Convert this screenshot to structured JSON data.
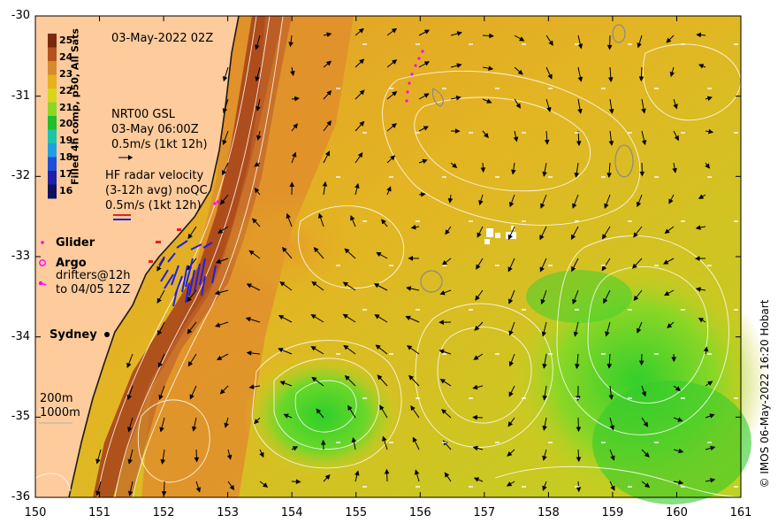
{
  "map": {
    "date_label": "03-May-2022 02Z",
    "colorbar": {
      "title": "Filled 4h comp, p50, All Sats",
      "ticks": [
        "25",
        "24",
        "23",
        "22",
        "21",
        "20",
        "19",
        "18",
        "17",
        "16"
      ],
      "colors": [
        "#7a2a0a",
        "#b4531c",
        "#d88a2e",
        "#e7b21f",
        "#d6d61a",
        "#8fd624",
        "#1fbf2e",
        "#1fc4a8",
        "#1f9fe0",
        "#1f4fd6",
        "#1f1fa8",
        "#101060"
      ]
    },
    "gsl_legend": {
      "line1": "NRT00 GSL",
      "line2": "03-May 06:00Z",
      "line3": "0.5m/s (1kt 12h)"
    },
    "hf_legend": {
      "line1": "HF radar velocity",
      "line2": "(3-12h avg) noQC",
      "line3": "0.5m/s (1kt 12h)"
    },
    "glider_label": "Glider",
    "argo_label": "Argo",
    "drifters_line1": "drifters@12h",
    "drifters_line2": "to 04/05 12Z",
    "city_label": "Sydney",
    "depth_200": "200m",
    "depth_1000": "1000m",
    "credit": "© IMOS 06-May-2022 16:20 Hobart",
    "x_ticks": [
      "150",
      "151",
      "152",
      "153",
      "154",
      "155",
      "156",
      "157",
      "158",
      "159",
      "160",
      "161"
    ],
    "y_ticks": [
      "-30",
      "-31",
      "-32",
      "-33",
      "-34",
      "-35",
      "-36"
    ],
    "colors": {
      "land": "#fdcb9c",
      "sea_warm": "#e8a52a",
      "sea_mid": "#d9c21f",
      "sea_cool": "#55d42a",
      "current_core": "#9a3a12",
      "glider": "#ff00ff",
      "hf_red": "#e62020",
      "hf_blue": "#2020e0"
    }
  }
}
